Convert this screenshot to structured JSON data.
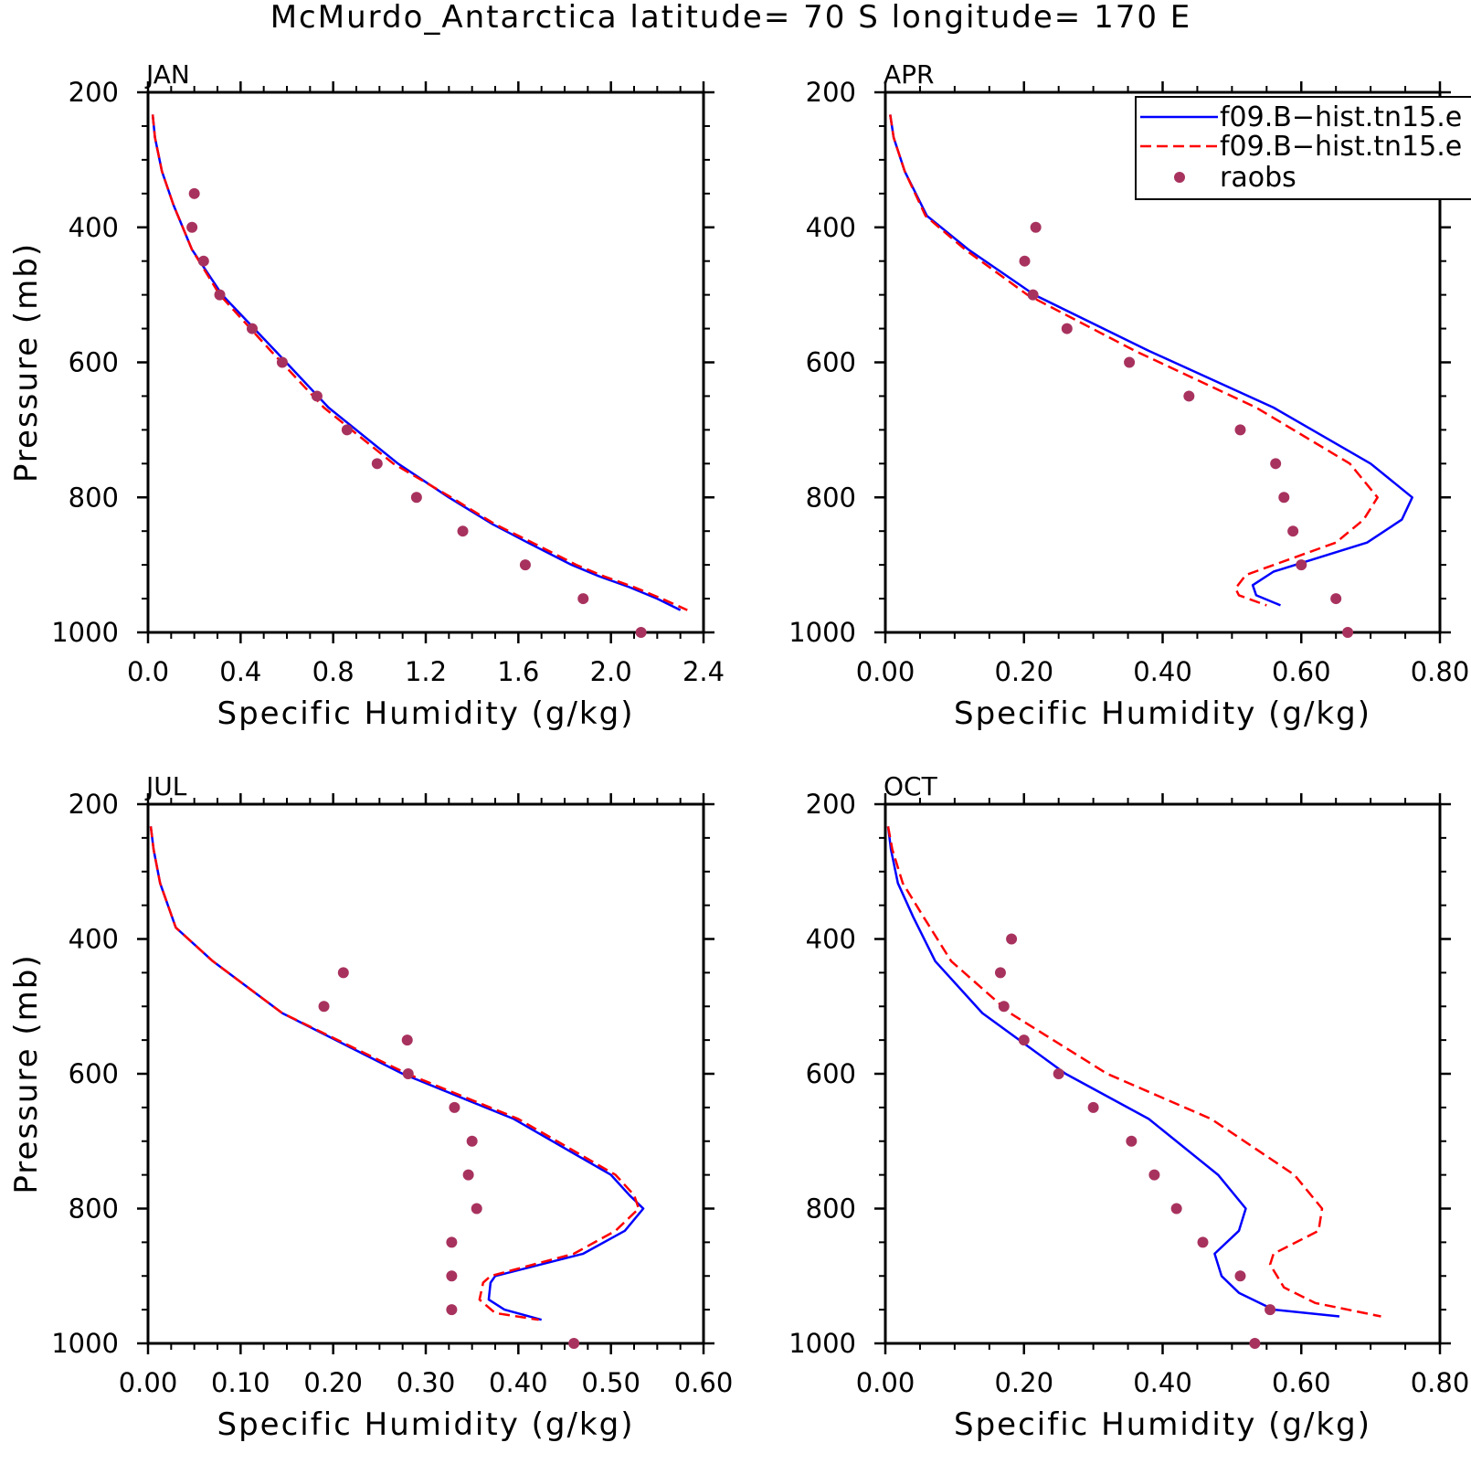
{
  "title": "McMurdo_Antarctica  latitude= 70 S longitude= 170 E",
  "legend": {
    "entries": [
      {
        "label": "f09.B−hist.tn15.e",
        "color": "#0000ff",
        "style": "solid"
      },
      {
        "label": "f09.B−hist.tn15.e",
        "color": "#ff0000",
        "style": "dashed"
      },
      {
        "label": "raobs",
        "color": "#a8325e",
        "style": "dot"
      }
    ]
  },
  "colors": {
    "model1": "#0000ff",
    "model2": "#ff0000",
    "obs": "#a8325e"
  },
  "chart_data": [
    {
      "type": "line",
      "title": "JAN",
      "xlabel": "Specific Humidity (g/kg)",
      "ylabel": "Pressure (mb)",
      "xlim": [
        0,
        2.4
      ],
      "ylim": [
        1000,
        200
      ],
      "xticks": [
        "0.0",
        "0.4",
        "0.8",
        "1.2",
        "1.6",
        "2.0",
        "2.4"
      ],
      "yticks": [
        "200",
        "400",
        "600",
        "800",
        "1000"
      ],
      "series": [
        {
          "line": "model1",
          "x": [
            0.02,
            0.03,
            0.06,
            0.11,
            0.19,
            0.32,
            0.55,
            0.78,
            1.08,
            1.3,
            1.49,
            1.64,
            1.83,
            1.95,
            2.08,
            2.2,
            2.3
          ],
          "y": [
            233,
            267,
            317,
            367,
            433,
            500,
            583,
            667,
            750,
            800,
            840,
            867,
            900,
            917,
            933,
            950,
            967
          ]
        },
        {
          "line": "model2",
          "x": [
            0.02,
            0.03,
            0.06,
            0.11,
            0.19,
            0.31,
            0.53,
            0.76,
            1.06,
            1.31,
            1.5,
            1.66,
            1.85,
            1.97,
            2.1,
            2.22,
            2.33
          ],
          "y": [
            233,
            267,
            317,
            367,
            433,
            500,
            583,
            667,
            750,
            800,
            840,
            867,
            900,
            917,
            933,
            950,
            967
          ]
        },
        {
          "line": "obs",
          "x": [
            0.2,
            0.19,
            0.24,
            0.31,
            0.45,
            0.58,
            0.73,
            0.86,
            0.99,
            1.16,
            1.36,
            1.63,
            1.88,
            2.13
          ],
          "y": [
            350,
            400,
            450,
            500,
            550,
            600,
            650,
            700,
            750,
            800,
            850,
            900,
            950,
            1000
          ]
        }
      ]
    },
    {
      "type": "line",
      "title": "APR",
      "xlabel": "Specific Humidity (g/kg)",
      "ylabel": "",
      "xlim": [
        0,
        0.8
      ],
      "ylim": [
        1000,
        200
      ],
      "xticks": [
        "0.00",
        "0.20",
        "0.40",
        "0.60",
        "0.80"
      ],
      "yticks": [
        "200",
        "400",
        "600",
        "800",
        "1000"
      ],
      "series": [
        {
          "line": "model1",
          "x": [
            0.007,
            0.012,
            0.028,
            0.06,
            0.12,
            0.215,
            0.38,
            0.56,
            0.7,
            0.76,
            0.745,
            0.695,
            0.56,
            0.53,
            0.535,
            0.57
          ],
          "y": [
            233,
            267,
            317,
            383,
            433,
            500,
            583,
            667,
            750,
            800,
            833,
            867,
            910,
            930,
            945,
            960
          ]
        },
        {
          "line": "model2",
          "x": [
            0.007,
            0.012,
            0.028,
            0.058,
            0.115,
            0.205,
            0.36,
            0.535,
            0.67,
            0.71,
            0.69,
            0.65,
            0.52,
            0.505,
            0.51,
            0.55
          ],
          "y": [
            233,
            267,
            317,
            383,
            433,
            500,
            583,
            667,
            750,
            800,
            833,
            867,
            915,
            935,
            945,
            960
          ]
        },
        {
          "line": "obs",
          "x": [
            0.217,
            0.201,
            0.213,
            0.262,
            0.352,
            0.438,
            0.512,
            0.563,
            0.575,
            0.588,
            0.6,
            0.65,
            0.667
          ],
          "y": [
            400,
            450,
            500,
            550,
            600,
            650,
            700,
            750,
            800,
            850,
            900,
            950,
            1000
          ]
        }
      ]
    },
    {
      "type": "line",
      "title": "JUL",
      "xlabel": "Specific Humidity (g/kg)",
      "ylabel": "Pressure (mb)",
      "xlim": [
        0,
        0.6
      ],
      "ylim": [
        1000,
        200
      ],
      "xticks": [
        "0.00",
        "0.10",
        "0.20",
        "0.30",
        "0.40",
        "0.50",
        "0.60"
      ],
      "yticks": [
        "200",
        "400",
        "600",
        "800",
        "1000"
      ],
      "series": [
        {
          "line": "model1",
          "x": [
            0.003,
            0.006,
            0.013,
            0.03,
            0.07,
            0.145,
            0.275,
            0.395,
            0.5,
            0.52,
            0.535,
            0.515,
            0.47,
            0.375,
            0.37,
            0.368,
            0.385,
            0.425
          ],
          "y": [
            233,
            267,
            317,
            383,
            433,
            510,
            600,
            667,
            750,
            780,
            800,
            833,
            867,
            900,
            910,
            935,
            950,
            965
          ]
        },
        {
          "line": "model2",
          "x": [
            0.003,
            0.006,
            0.013,
            0.03,
            0.07,
            0.145,
            0.28,
            0.4,
            0.505,
            0.525,
            0.53,
            0.505,
            0.46,
            0.37,
            0.362,
            0.358,
            0.375,
            0.422
          ],
          "y": [
            233,
            267,
            317,
            383,
            433,
            510,
            600,
            667,
            750,
            780,
            800,
            833,
            867,
            900,
            910,
            935,
            955,
            965
          ]
        },
        {
          "line": "obs",
          "x": [
            0.211,
            0.19,
            0.28,
            0.281,
            0.331,
            0.35,
            0.346,
            0.355,
            0.328,
            0.328,
            0.328,
            0.46
          ],
          "y": [
            450,
            500,
            550,
            600,
            650,
            700,
            750,
            800,
            850,
            900,
            950,
            1000
          ]
        }
      ]
    },
    {
      "type": "line",
      "title": "OCT",
      "xlabel": "Specific Humidity (g/kg)",
      "ylabel": "",
      "xlim": [
        0,
        0.8
      ],
      "ylim": [
        1000,
        200
      ],
      "xticks": [
        "0.00",
        "0.20",
        "0.40",
        "0.60",
        "0.80"
      ],
      "yticks": [
        "200",
        "400",
        "600",
        "800",
        "1000"
      ],
      "series": [
        {
          "line": "model1",
          "x": [
            0.004,
            0.008,
            0.018,
            0.04,
            0.072,
            0.14,
            0.26,
            0.38,
            0.48,
            0.52,
            0.51,
            0.475,
            0.485,
            0.51,
            0.56,
            0.655
          ],
          "y": [
            233,
            267,
            317,
            367,
            433,
            510,
            600,
            667,
            750,
            800,
            833,
            867,
            900,
            925,
            950,
            960
          ]
        },
        {
          "line": "model2",
          "x": [
            0.004,
            0.01,
            0.025,
            0.055,
            0.095,
            0.18,
            0.32,
            0.47,
            0.59,
            0.63,
            0.625,
            0.56,
            0.555,
            0.575,
            0.62,
            0.715
          ],
          "y": [
            233,
            267,
            317,
            367,
            433,
            510,
            600,
            667,
            750,
            800,
            833,
            867,
            883,
            917,
            940,
            960
          ]
        },
        {
          "line": "obs",
          "x": [
            0.182,
            0.166,
            0.171,
            0.2,
            0.25,
            0.3,
            0.355,
            0.388,
            0.42,
            0.458,
            0.512,
            0.555,
            0.533
          ],
          "y": [
            400,
            450,
            500,
            550,
            600,
            650,
            700,
            750,
            800,
            850,
            900,
            950,
            1000
          ]
        }
      ]
    }
  ]
}
